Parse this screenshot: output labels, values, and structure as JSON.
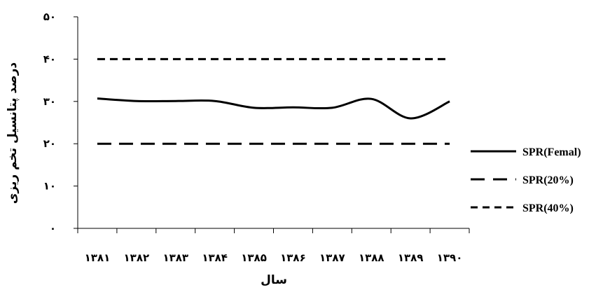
{
  "chart_data": {
    "type": "line",
    "xlabel": "سال",
    "ylabel": "درصد پتانسیل تخم ریزی",
    "x": [
      "۱۳۸۱",
      "۱۳۸۲",
      "۱۳۸۳",
      "۱۳۸۴",
      "۱۳۸۵",
      "۱۳۸۶",
      "۱۳۸۷",
      "۱۳۸۸",
      "۱۳۸۹",
      "۱۳۹۰"
    ],
    "y_ticks": [
      "۰",
      "۱۰",
      "۲۰",
      "۳۰",
      "۴۰",
      "۵۰"
    ],
    "ylim": [
      0,
      50
    ],
    "grid": false,
    "legend_position": "right",
    "series": [
      {
        "name": "SPR(Femal)",
        "style": "solid",
        "color": "#000000",
        "values": [
          30.7,
          30.1,
          30.1,
          30.1,
          28.5,
          28.6,
          28.5,
          30.6,
          26.0,
          30.0
        ]
      },
      {
        "name": "SPR(20%)",
        "style": "long-dash",
        "color": "#000000",
        "values": [
          20,
          20,
          20,
          20,
          20,
          20,
          20,
          20,
          20,
          20
        ]
      },
      {
        "name": "SPR(40%)",
        "style": "short-dash",
        "color": "#000000",
        "values": [
          40,
          40,
          40,
          40,
          40,
          40,
          40,
          40,
          40,
          40
        ]
      }
    ]
  }
}
